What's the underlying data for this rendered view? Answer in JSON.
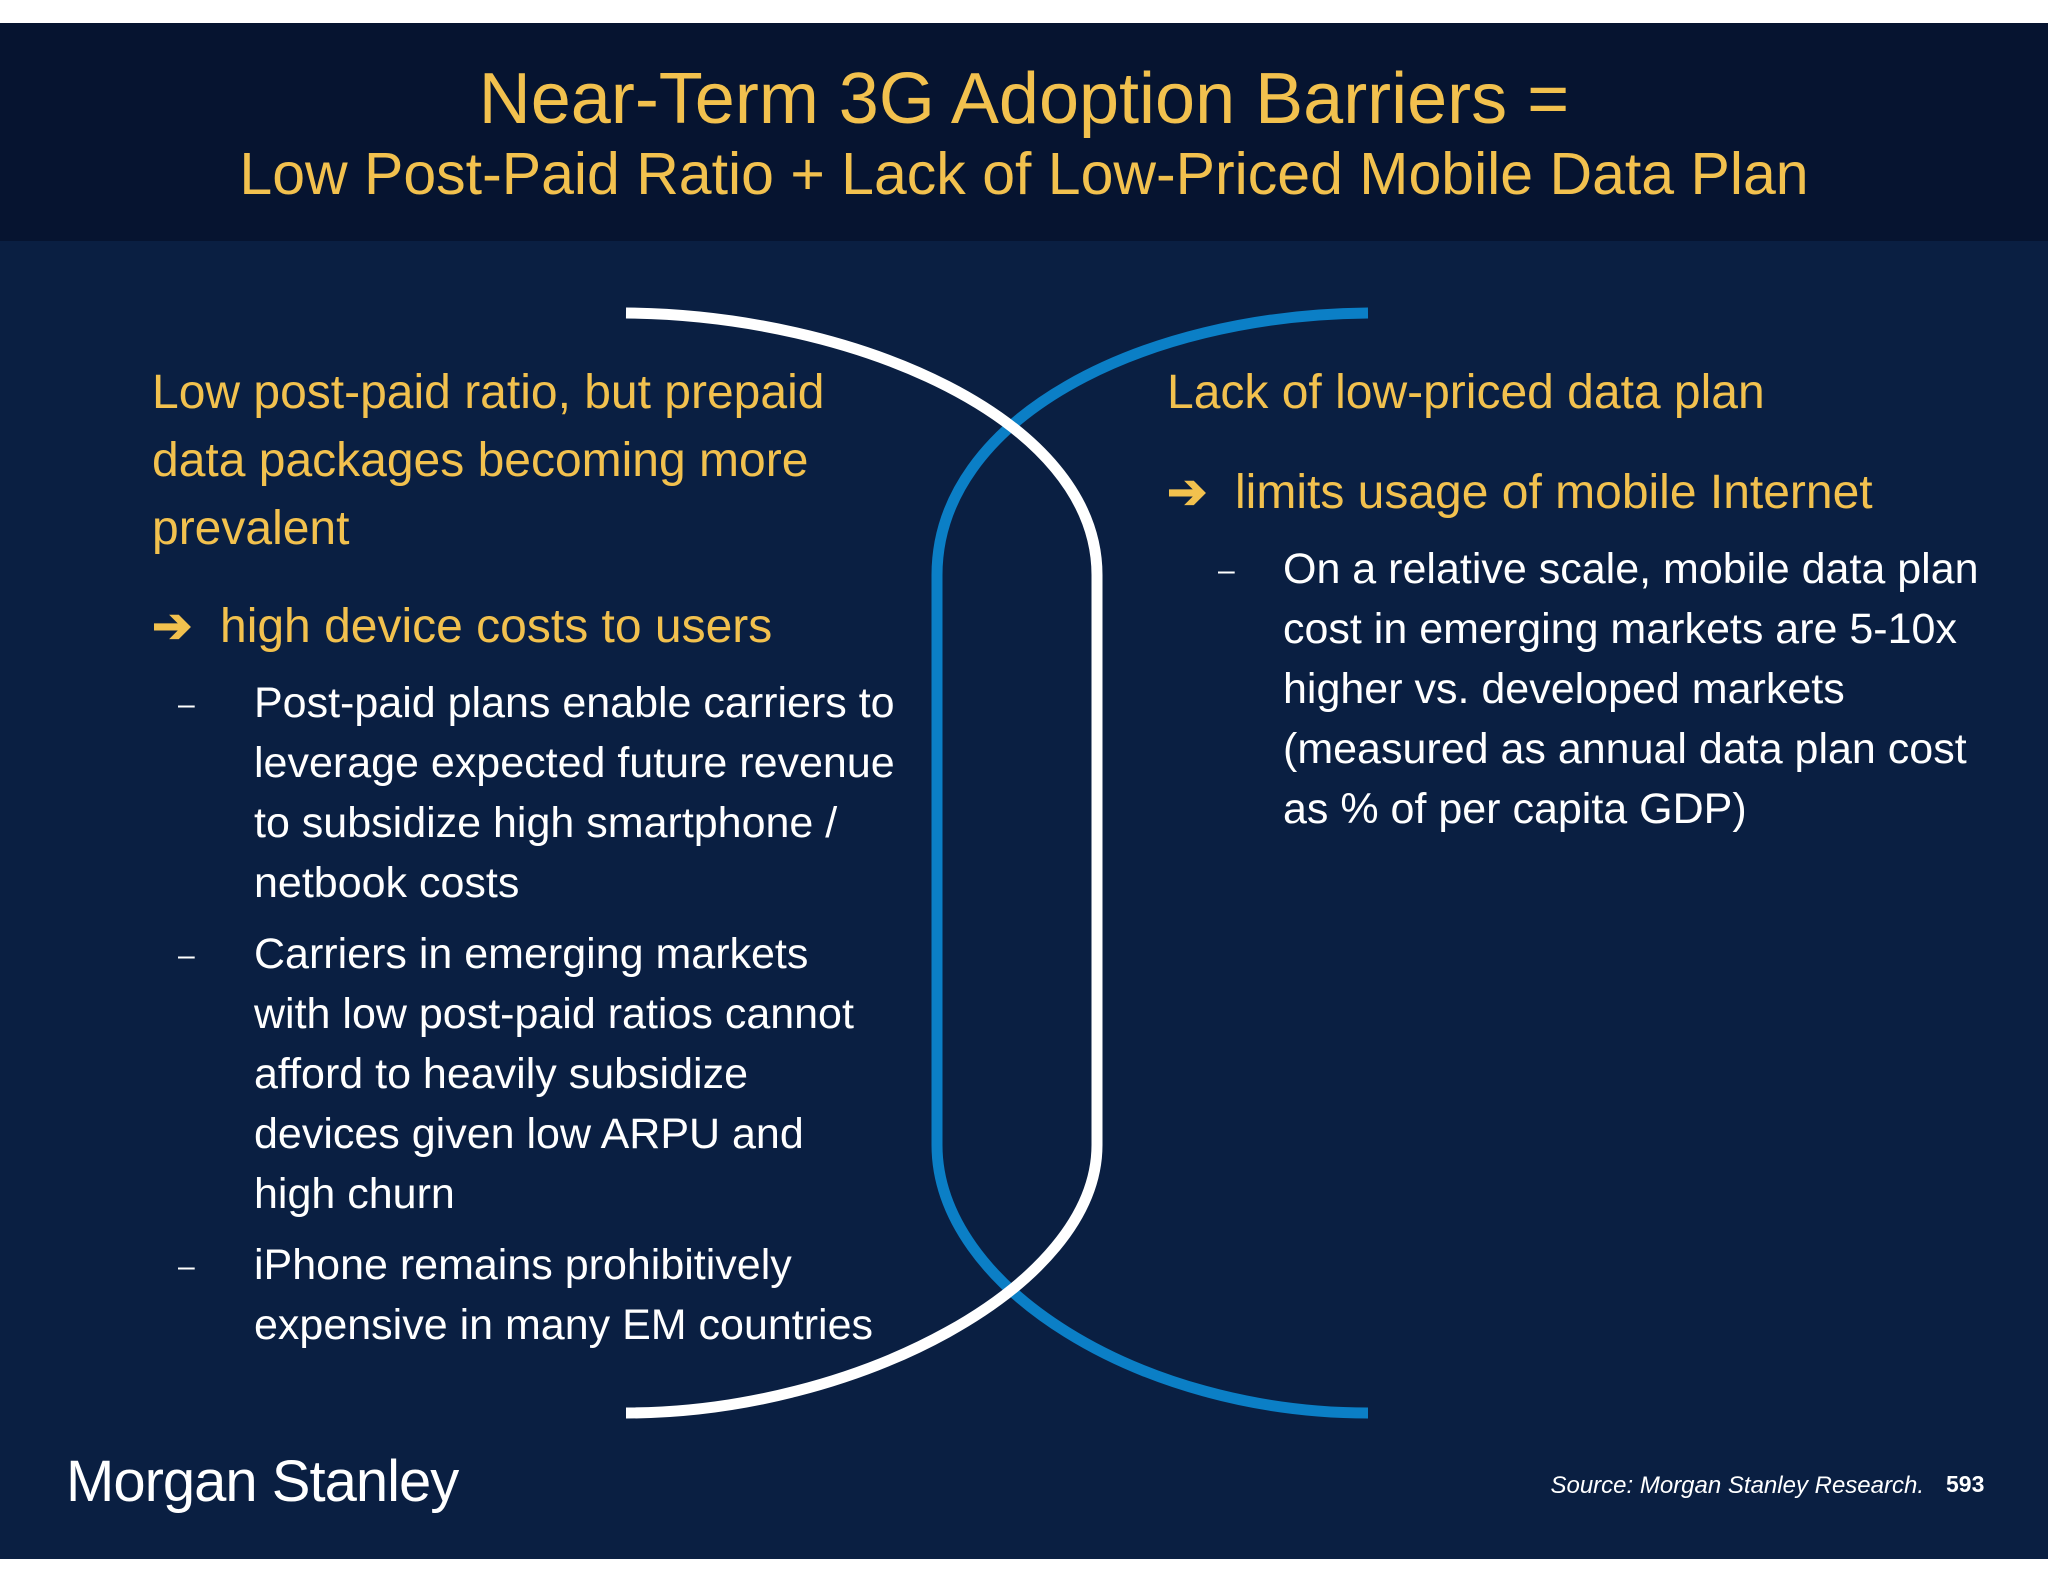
{
  "header": {
    "title_line1": "Near-Term 3G Adoption Barriers =",
    "title_line2": "Low Post-Paid Ratio + Lack of Low-Priced Mobile Data Plan"
  },
  "left": {
    "heading": "Low post-paid ratio, but prepaid data packages becoming more prevalent",
    "arrow_symbol": "➔",
    "arrow_text": "high device costs to users",
    "dash_symbol": "–",
    "bullets": [
      "Post-paid plans enable carriers to leverage expected future revenue to subsidize high smartphone / netbook costs",
      "Carriers in emerging markets with low post-paid ratios cannot afford to heavily subsidize devices given low ARPU and high churn",
      "iPhone remains prohibitively expensive in many EM countries"
    ]
  },
  "right": {
    "heading": "Lack of low-priced data plan",
    "arrow_symbol": "➔",
    "arrow_text": "limits usage of mobile Internet",
    "dash_symbol": "–",
    "bullets": [
      "On a relative scale, mobile data plan cost in emerging markets are 5-10x higher vs. developed markets (measured as annual data plan cost as % of per capita GDP)"
    ]
  },
  "footer": {
    "logo": "Morgan Stanley",
    "source": "Source: Morgan Stanley Research.",
    "page_number": "593"
  },
  "colors": {
    "background": "#0a1f42",
    "header_background": "#061430",
    "accent_gold": "#f2c14e",
    "arc_white": "#ffffff",
    "arc_blue": "#0b7fc6"
  }
}
